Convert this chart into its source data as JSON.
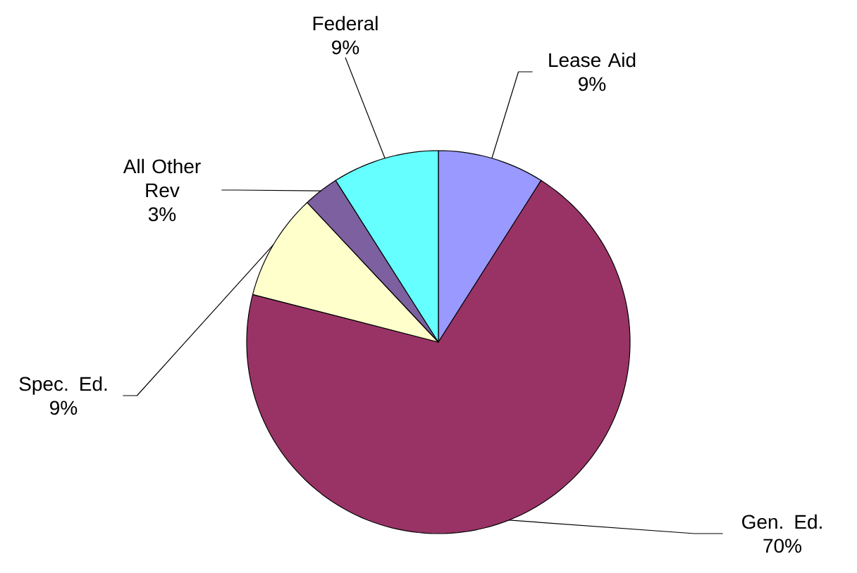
{
  "chart_data": {
    "type": "pie",
    "categories": [
      "Lease Aid",
      "Gen. Ed.",
      "Spec. Ed.",
      "All Other Rev",
      "Federal"
    ],
    "values": [
      9,
      70,
      9,
      3,
      9
    ],
    "value_labels": [
      "9%",
      "70%",
      "9%",
      "3%",
      "9%"
    ],
    "colors": [
      "#9999ff",
      "#993366",
      "#ffffcc",
      "#7d60a0",
      "#66ffff"
    ]
  }
}
